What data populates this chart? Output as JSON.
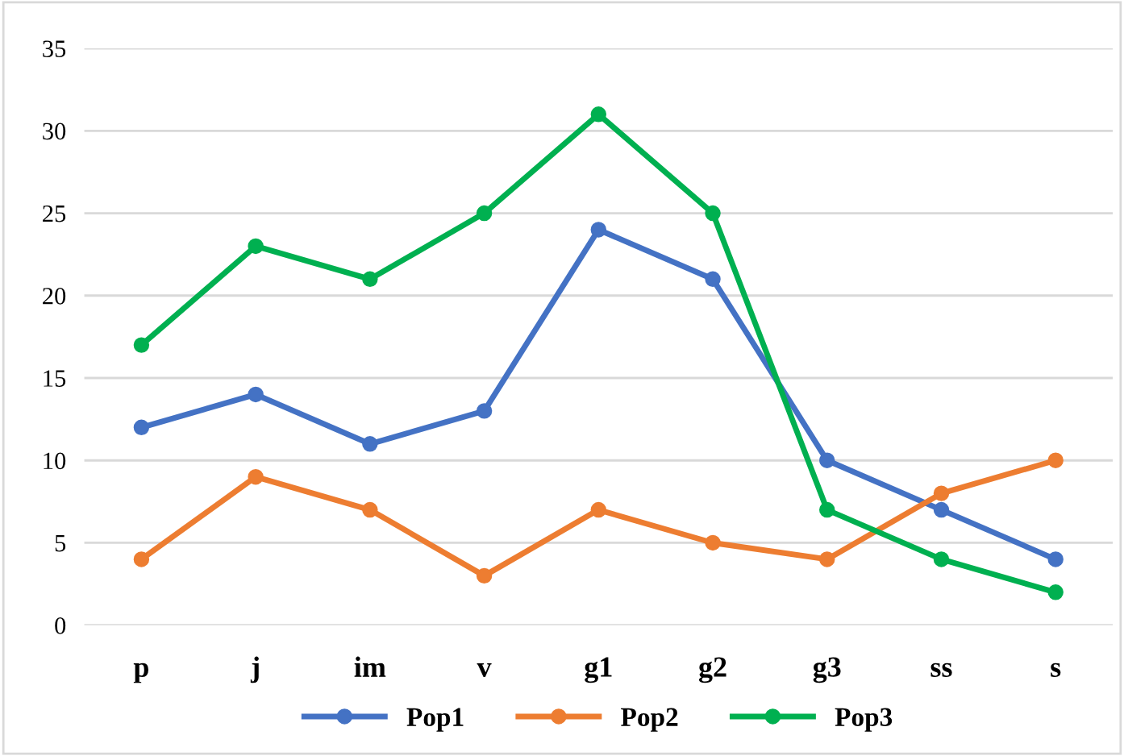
{
  "chart_data": {
    "type": "line",
    "categories": [
      "p",
      "j",
      "im",
      "v",
      "g1",
      "g2",
      "g3",
      "ss",
      "s"
    ],
    "series": [
      {
        "name": "Pop1",
        "color": "#4472c4",
        "values": [
          12,
          14,
          11,
          13,
          24,
          21,
          10,
          7,
          4
        ]
      },
      {
        "name": "Pop2",
        "color": "#ed7d31",
        "values": [
          4,
          9,
          7,
          3,
          7,
          5,
          4,
          8,
          10
        ]
      },
      {
        "name": "Pop3",
        "color": "#00b050",
        "values": [
          17,
          23,
          21,
          25,
          31,
          25,
          7,
          4,
          2
        ]
      }
    ],
    "ylim": [
      0,
      35
    ],
    "yticks": [
      0,
      5,
      10,
      15,
      20,
      25,
      30,
      35
    ],
    "grid": "y",
    "legend": "bottom",
    "marker": "circle",
    "line_style": "solid"
  }
}
